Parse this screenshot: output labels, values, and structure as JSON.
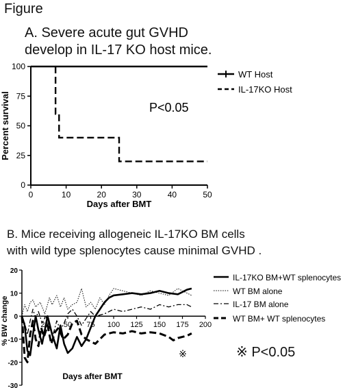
{
  "figure_label": "Figure",
  "chart_data": [
    {
      "type": "line",
      "title": "A. Severe acute gut GVHD\ndevelop in IL-17 KO host mice.",
      "xlabel": "Days after BMT",
      "ylabel": "Percent survival",
      "xlim": [
        0,
        50
      ],
      "ylim": [
        0,
        100
      ],
      "xticks": [
        "0",
        "10",
        "20",
        "30",
        "40",
        "50"
      ],
      "yticks": [
        "0",
        "25",
        "50",
        "75",
        "100"
      ],
      "annotation": "P<0.05",
      "legend_position": "top-right",
      "series": [
        {
          "name": "WT Host",
          "style": "solid",
          "x": [
            0,
            50
          ],
          "y": [
            100,
            100
          ]
        },
        {
          "name": "IL-17KO Host",
          "style": "dashed",
          "x": [
            7,
            7,
            8,
            8,
            25,
            25,
            50
          ],
          "y": [
            100,
            60,
            60,
            40,
            40,
            20,
            20
          ]
        }
      ]
    },
    {
      "type": "line",
      "title": "B. Mice receiving allogeneic IL-17KO BM cells\nwith wild type splenocytes cause minimal GVHD .",
      "xlabel": "Days after BMT",
      "ylabel": "% BW change",
      "xlim": [
        0,
        200
      ],
      "ylim": [
        -30,
        20
      ],
      "xticks": [
        "25",
        "50",
        "75",
        "100",
        "125",
        "150",
        "175",
        "200"
      ],
      "yticks": [
        "-30",
        "-20",
        "-10",
        "0",
        "10",
        "20"
      ],
      "annotation": "※ P<0.05",
      "marker_label": "※",
      "legend_position": "right",
      "series": [
        {
          "name": "IL-17KO BM+WT splenocytes",
          "style": "solid",
          "x": [
            0,
            3,
            6,
            9,
            12,
            15,
            18,
            22,
            28,
            33,
            38,
            42,
            46,
            50,
            55,
            60,
            65,
            70,
            75,
            80,
            85,
            90,
            95,
            100,
            110,
            120,
            130,
            140,
            150,
            160,
            170,
            180,
            185
          ],
          "y": [
            0,
            -4,
            -15,
            -17,
            -8,
            0,
            -6,
            -12,
            0,
            -8,
            -14,
            -4,
            -12,
            -16,
            -14,
            -9,
            -13,
            -10,
            -5,
            0,
            3,
            6,
            8,
            9,
            9.5,
            10,
            9.5,
            10,
            11,
            10,
            9.5,
            11.5,
            12
          ]
        },
        {
          "name": "WT BM alone",
          "style": "dotted",
          "x": [
            0,
            3,
            6,
            9,
            12,
            15,
            20,
            25,
            30,
            33,
            38,
            42,
            46,
            50,
            55,
            60,
            65,
            70,
            75,
            80,
            85,
            90,
            95,
            100,
            110,
            120,
            130,
            140,
            150,
            160,
            170,
            180,
            185
          ],
          "y": [
            0,
            5,
            2,
            6,
            7,
            4,
            6,
            1,
            8,
            5,
            9,
            4,
            8,
            3,
            5,
            6,
            12,
            4,
            6,
            3,
            8,
            5,
            9,
            12,
            11,
            10,
            9,
            11,
            10,
            9,
            12,
            10,
            9
          ]
        },
        {
          "name": "IL-17 BM alone",
          "style": "dashdot",
          "x": [
            0,
            3,
            6,
            9,
            12,
            15,
            18,
            22,
            26,
            30,
            34,
            38,
            42,
            46,
            50,
            55,
            60,
            65,
            70,
            75,
            80,
            90,
            100,
            110,
            120,
            130,
            140,
            150,
            160,
            170,
            180,
            185
          ],
          "y": [
            0,
            -3,
            -8,
            -2,
            3,
            -1,
            2,
            -3,
            0,
            -5,
            -8,
            -2,
            -6,
            -3,
            1,
            3,
            0,
            -4,
            -1,
            2,
            0,
            1,
            3,
            2,
            3,
            4,
            3,
            5,
            4,
            5,
            5,
            4
          ]
        },
        {
          "name": "WT BM+ WT splenocytes",
          "style": "dashed",
          "x": [
            0,
            3,
            6,
            9,
            12,
            15,
            18,
            21,
            24,
            28,
            32,
            36,
            40,
            45,
            50,
            55,
            60,
            65,
            70,
            75,
            80,
            90,
            100,
            110,
            120,
            130,
            140,
            150,
            160,
            165,
            170,
            180,
            185
          ],
          "y": [
            0,
            -18,
            -20,
            -8,
            -2,
            -10,
            -13,
            -5,
            -9,
            -4,
            -12,
            -7,
            -5,
            -10,
            -8,
            -3,
            -2,
            -8,
            -10,
            -11,
            -12,
            -8,
            -7,
            -7.5,
            -6.5,
            -7.5,
            -7,
            -7.5,
            -9,
            -10.5,
            -9.5,
            -8.5,
            -7.5
          ]
        }
      ]
    }
  ]
}
